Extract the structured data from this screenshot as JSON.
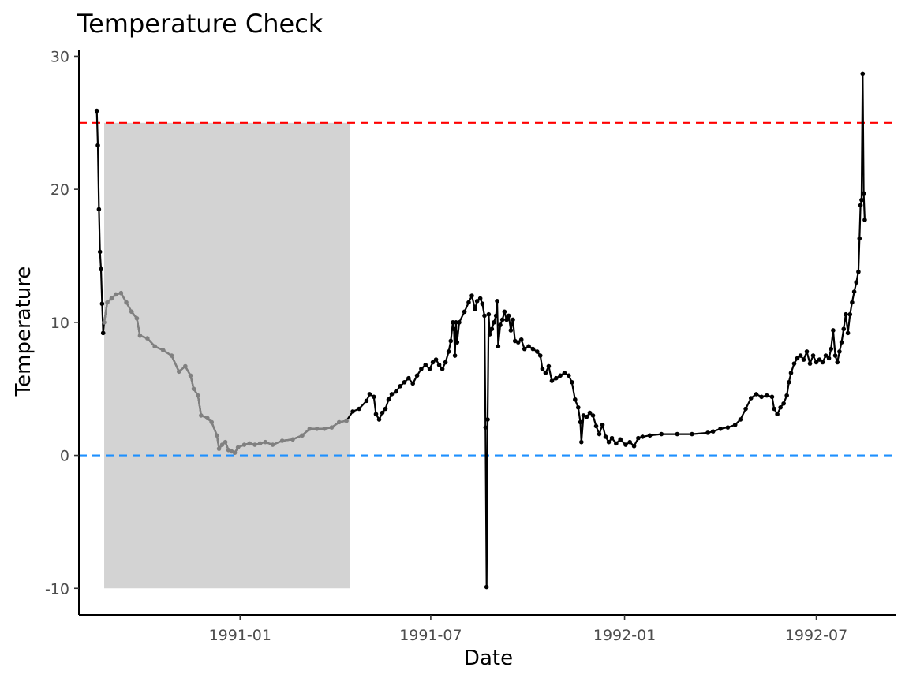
{
  "chart_data": {
    "type": "line",
    "title": "Temperature Check",
    "xlabel": "Date",
    "ylabel": "Temperature",
    "x_axis": {
      "range": [
        "1990-08-01",
        "1992-09-15"
      ],
      "ticks": [
        {
          "date": "1991-01-01",
          "label": "1991-01"
        },
        {
          "date": "1991-07-01",
          "label": "1991-07"
        },
        {
          "date": "1992-01-01",
          "label": "1992-01"
        },
        {
          "date": "1992-07-01",
          "label": "1992-07"
        }
      ]
    },
    "y_axis": {
      "range": [
        -12,
        30.5
      ],
      "ticks": [
        -10,
        0,
        10,
        20,
        30
      ],
      "tick_labels": [
        "-10",
        "0",
        "10",
        "20",
        "30"
      ]
    },
    "grid": false,
    "reference_lines": [
      {
        "y": 25,
        "color": "#ff0000",
        "style": "dashed"
      },
      {
        "y": 0,
        "color": "#1e90ff",
        "style": "dashed"
      }
    ],
    "shaded_region": {
      "x_start": "1990-08-25",
      "x_end": "1991-04-15",
      "y_start": -10,
      "y_end": 25,
      "fill": "#d3d3d3",
      "points_color": "#808080"
    },
    "series_color": "#000000",
    "series": [
      {
        "points": [
          [
            "1990-08-18",
            25.9
          ],
          [
            "1990-08-19",
            23.3
          ],
          [
            "1990-08-20",
            18.5
          ],
          [
            "1990-08-21",
            15.3
          ],
          [
            "1990-08-22",
            14.0
          ],
          [
            "1990-08-23",
            11.4
          ],
          [
            "1990-08-24",
            9.2
          ],
          [
            "1990-08-25",
            10.0
          ],
          [
            "1990-08-28",
            11.5
          ],
          [
            "1990-09-01",
            11.8
          ],
          [
            "1990-09-05",
            12.1
          ],
          [
            "1990-09-10",
            12.2
          ],
          [
            "1990-09-15",
            11.5
          ],
          [
            "1990-09-20",
            10.8
          ],
          [
            "1990-09-25",
            10.3
          ],
          [
            "1990-09-28",
            9.0
          ],
          [
            "1990-10-05",
            8.8
          ],
          [
            "1990-10-12",
            8.2
          ],
          [
            "1990-10-20",
            7.9
          ],
          [
            "1990-10-28",
            7.5
          ],
          [
            "1990-11-04",
            6.3
          ],
          [
            "1990-11-10",
            6.7
          ],
          [
            "1990-11-15",
            6.0
          ],
          [
            "1990-11-18",
            5.0
          ],
          [
            "1990-11-22",
            4.5
          ],
          [
            "1990-11-25",
            3.0
          ],
          [
            "1990-12-01",
            2.8
          ],
          [
            "1990-12-05",
            2.5
          ],
          [
            "1990-12-10",
            1.5
          ],
          [
            "1990-12-12",
            0.5
          ],
          [
            "1990-12-15",
            0.8
          ],
          [
            "1990-12-18",
            1.0
          ],
          [
            "1990-12-21",
            0.4
          ],
          [
            "1990-12-24",
            0.3
          ],
          [
            "1990-12-27",
            0.2
          ],
          [
            "1990-12-30",
            0.6
          ],
          [
            "1991-01-05",
            0.8
          ],
          [
            "1991-01-10",
            0.9
          ],
          [
            "1991-01-15",
            0.8
          ],
          [
            "1991-01-20",
            0.9
          ],
          [
            "1991-01-25",
            1.0
          ],
          [
            "1991-02-01",
            0.8
          ],
          [
            "1991-02-10",
            1.1
          ],
          [
            "1991-02-20",
            1.2
          ],
          [
            "1991-03-01",
            1.5
          ],
          [
            "1991-03-08",
            2.0
          ],
          [
            "1991-03-15",
            2.0
          ],
          [
            "1991-03-22",
            2.0
          ],
          [
            "1991-03-29",
            2.1
          ],
          [
            "1991-04-05",
            2.5
          ],
          [
            "1991-04-12",
            2.6
          ],
          [
            "1991-04-18",
            3.3
          ],
          [
            "1991-04-24",
            3.5
          ],
          [
            "1991-05-01",
            4.1
          ],
          [
            "1991-05-04",
            4.6
          ],
          [
            "1991-05-08",
            4.4
          ],
          [
            "1991-05-10",
            3.1
          ],
          [
            "1991-05-13",
            2.7
          ],
          [
            "1991-05-16",
            3.2
          ],
          [
            "1991-05-19",
            3.5
          ],
          [
            "1991-05-22",
            4.2
          ],
          [
            "1991-05-25",
            4.6
          ],
          [
            "1991-05-29",
            4.8
          ],
          [
            "1991-06-02",
            5.2
          ],
          [
            "1991-06-06",
            5.5
          ],
          [
            "1991-06-10",
            5.8
          ],
          [
            "1991-06-14",
            5.4
          ],
          [
            "1991-06-18",
            6.0
          ],
          [
            "1991-06-22",
            6.5
          ],
          [
            "1991-06-26",
            6.8
          ],
          [
            "1991-06-30",
            6.5
          ],
          [
            "1991-07-03",
            7.0
          ],
          [
            "1991-07-06",
            7.2
          ],
          [
            "1991-07-09",
            6.8
          ],
          [
            "1991-07-12",
            6.5
          ],
          [
            "1991-07-15",
            7.0
          ],
          [
            "1991-07-18",
            7.8
          ],
          [
            "1991-07-20",
            8.6
          ],
          [
            "1991-07-22",
            10.0
          ],
          [
            "1991-07-23",
            9.5
          ],
          [
            "1991-07-24",
            7.5
          ],
          [
            "1991-07-25",
            10.0
          ],
          [
            "1991-07-26",
            8.5
          ],
          [
            "1991-07-28",
            10.0
          ],
          [
            "1991-08-02",
            10.8
          ],
          [
            "1991-08-06",
            11.5
          ],
          [
            "1991-08-09",
            12.0
          ],
          [
            "1991-08-12",
            11.0
          ],
          [
            "1991-08-14",
            11.6
          ],
          [
            "1991-08-17",
            11.8
          ],
          [
            "1991-08-19",
            11.4
          ],
          [
            "1991-08-21",
            10.5
          ],
          [
            "1991-08-22",
            2.1
          ],
          [
            "1991-08-23",
            -9.9
          ],
          [
            "1991-08-24",
            2.7
          ],
          [
            "1991-08-25",
            10.6
          ],
          [
            "1991-08-26",
            9.1
          ],
          [
            "1991-08-28",
            9.5
          ],
          [
            "1991-08-30",
            10.0
          ],
          [
            "1991-09-01",
            10.5
          ],
          [
            "1991-09-02",
            11.6
          ],
          [
            "1991-09-03",
            8.2
          ],
          [
            "1991-09-05",
            9.8
          ],
          [
            "1991-09-07",
            10.2
          ],
          [
            "1991-09-09",
            10.8
          ],
          [
            "1991-09-11",
            10.2
          ],
          [
            "1991-09-13",
            10.5
          ],
          [
            "1991-09-15",
            9.4
          ],
          [
            "1991-09-17",
            10.2
          ],
          [
            "1991-09-19",
            8.6
          ],
          [
            "1991-09-22",
            8.5
          ],
          [
            "1991-09-25",
            8.7
          ],
          [
            "1991-09-28",
            8.0
          ],
          [
            "1991-10-02",
            8.2
          ],
          [
            "1991-10-06",
            8.0
          ],
          [
            "1991-10-10",
            7.8
          ],
          [
            "1991-10-13",
            7.5
          ],
          [
            "1991-10-15",
            6.5
          ],
          [
            "1991-10-18",
            6.2
          ],
          [
            "1991-10-21",
            6.7
          ],
          [
            "1991-10-24",
            5.6
          ],
          [
            "1991-10-28",
            5.8
          ],
          [
            "1991-11-01",
            6.0
          ],
          [
            "1991-11-05",
            6.2
          ],
          [
            "1991-11-09",
            6.0
          ],
          [
            "1991-11-12",
            5.5
          ],
          [
            "1991-11-15",
            4.2
          ],
          [
            "1991-11-18",
            3.6
          ],
          [
            "1991-11-20",
            2.5
          ],
          [
            "1991-11-21",
            1.0
          ],
          [
            "1991-11-23",
            3.0
          ],
          [
            "1991-11-26",
            2.9
          ],
          [
            "1991-11-29",
            3.2
          ],
          [
            "1991-12-02",
            3.0
          ],
          [
            "1991-12-05",
            2.2
          ],
          [
            "1991-12-08",
            1.6
          ],
          [
            "1991-12-11",
            2.3
          ],
          [
            "1991-12-14",
            1.4
          ],
          [
            "1991-12-17",
            1.0
          ],
          [
            "1991-12-20",
            1.3
          ],
          [
            "1991-12-24",
            0.9
          ],
          [
            "1991-12-28",
            1.2
          ],
          [
            "1992-01-02",
            0.8
          ],
          [
            "1992-01-06",
            1.0
          ],
          [
            "1992-01-10",
            0.7
          ],
          [
            "1992-01-14",
            1.3
          ],
          [
            "1992-01-18",
            1.4
          ],
          [
            "1992-01-25",
            1.5
          ],
          [
            "1992-02-05",
            1.6
          ],
          [
            "1992-02-20",
            1.6
          ],
          [
            "1992-03-05",
            1.6
          ],
          [
            "1992-03-20",
            1.7
          ],
          [
            "1992-03-25",
            1.8
          ],
          [
            "1992-04-01",
            2.0
          ],
          [
            "1992-04-08",
            2.1
          ],
          [
            "1992-04-15",
            2.3
          ],
          [
            "1992-04-20",
            2.7
          ],
          [
            "1992-04-25",
            3.5
          ],
          [
            "1992-04-30",
            4.3
          ],
          [
            "1992-05-05",
            4.6
          ],
          [
            "1992-05-10",
            4.4
          ],
          [
            "1992-05-15",
            4.5
          ],
          [
            "1992-05-20",
            4.4
          ],
          [
            "1992-05-22",
            3.5
          ],
          [
            "1992-05-25",
            3.1
          ],
          [
            "1992-05-28",
            3.6
          ],
          [
            "1992-05-31",
            3.9
          ],
          [
            "1992-06-03",
            4.5
          ],
          [
            "1992-06-05",
            5.5
          ],
          [
            "1992-06-07",
            6.2
          ],
          [
            "1992-06-10",
            6.9
          ],
          [
            "1992-06-13",
            7.3
          ],
          [
            "1992-06-16",
            7.5
          ],
          [
            "1992-06-19",
            7.2
          ],
          [
            "1992-06-22",
            7.8
          ],
          [
            "1992-06-25",
            6.9
          ],
          [
            "1992-06-28",
            7.5
          ],
          [
            "1992-07-01",
            7.0
          ],
          [
            "1992-07-04",
            7.2
          ],
          [
            "1992-07-07",
            7.0
          ],
          [
            "1992-07-10",
            7.5
          ],
          [
            "1992-07-13",
            7.3
          ],
          [
            "1992-07-15",
            8.0
          ],
          [
            "1992-07-17",
            9.4
          ],
          [
            "1992-07-19",
            7.5
          ],
          [
            "1992-07-21",
            7.0
          ],
          [
            "1992-07-23",
            7.8
          ],
          [
            "1992-07-25",
            8.5
          ],
          [
            "1992-07-27",
            9.5
          ],
          [
            "1992-07-29",
            10.6
          ],
          [
            "1992-07-31",
            9.2
          ],
          [
            "1992-08-02",
            10.6
          ],
          [
            "1992-08-04",
            11.5
          ],
          [
            "1992-08-06",
            12.3
          ],
          [
            "1992-08-08",
            13.0
          ],
          [
            "1992-08-10",
            13.8
          ],
          [
            "1992-08-11",
            16.3
          ],
          [
            "1992-08-12",
            18.8
          ],
          [
            "1992-08-13",
            19.2
          ],
          [
            "1992-08-14",
            28.7
          ],
          [
            "1992-08-15",
            19.7
          ],
          [
            "1992-08-16",
            17.7
          ]
        ]
      }
    ]
  }
}
